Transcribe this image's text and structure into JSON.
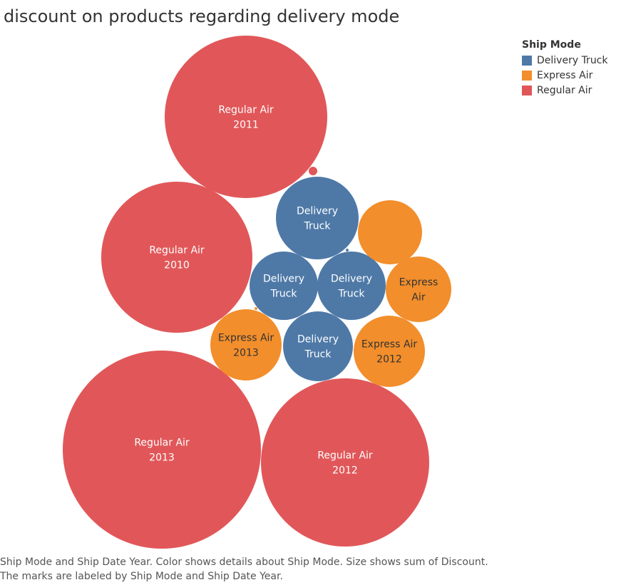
{
  "title": "discount on products regarding delivery mode",
  "legend": {
    "title": "Ship Mode",
    "items": [
      {
        "label": "Delivery Truck",
        "color": "#4e79a7"
      },
      {
        "label": "Express Air",
        "color": "#f28e2b"
      },
      {
        "label": "Regular Air",
        "color": "#e15759"
      }
    ]
  },
  "footer": {
    "line1": "Ship Mode and Ship Date Year.  Color shows details about Ship Mode.  Size shows sum of Discount.",
    "line2": "The marks are labeled by Ship Mode and Ship Date Year."
  },
  "chart_data": {
    "type": "packed-bubble",
    "size_measure": "sum of Discount",
    "color_dimension": "Ship Mode",
    "marks": [
      {
        "ship_mode": "Regular Air",
        "year": "2011",
        "label": [
          "Regular Air",
          "2011"
        ],
        "relative_size": 1.0
      },
      {
        "ship_mode": "Regular Air",
        "year": "2010",
        "label": [
          "Regular Air",
          "2010"
        ],
        "relative_size": 0.86
      },
      {
        "ship_mode": "Regular Air",
        "year": "2013",
        "label": [
          "Regular Air",
          "2013"
        ],
        "relative_size": 1.48
      },
      {
        "ship_mode": "Regular Air",
        "year": "2012",
        "label": [
          "Regular Air",
          "2012"
        ],
        "relative_size": 1.07
      },
      {
        "ship_mode": "Regular Air",
        "year": "",
        "label": [],
        "relative_size": 0.003
      },
      {
        "ship_mode": "Delivery Truck",
        "year": "",
        "label": [
          "Delivery",
          "Truck"
        ],
        "relative_size": 0.26
      },
      {
        "ship_mode": "Delivery Truck",
        "year": "",
        "label": [
          "Delivery",
          "Truck"
        ],
        "relative_size": 0.18
      },
      {
        "ship_mode": "Delivery Truck",
        "year": "",
        "label": [
          "Delivery",
          "Truck"
        ],
        "relative_size": 0.18
      },
      {
        "ship_mode": "Delivery Truck",
        "year": "",
        "label": [
          "Delivery",
          "Truck"
        ],
        "relative_size": 0.19
      },
      {
        "ship_mode": "Delivery Truck",
        "year": "",
        "label": [],
        "relative_size": 0.0002
      },
      {
        "ship_mode": "Express Air",
        "year": "",
        "label": [],
        "relative_size": 0.15
      },
      {
        "ship_mode": "Express Air",
        "year": "",
        "label": [
          "Express",
          "Air"
        ],
        "relative_size": 0.16
      },
      {
        "ship_mode": "Express Air",
        "year": "2013",
        "label": [
          "Express Air",
          "2013"
        ],
        "relative_size": 0.19
      },
      {
        "ship_mode": "Express Air",
        "year": "2012",
        "label": [
          "Express Air",
          "2012"
        ],
        "relative_size": 0.19
      },
      {
        "ship_mode": "Express Air",
        "year": "",
        "label": [],
        "relative_size": 0.0002
      }
    ]
  }
}
